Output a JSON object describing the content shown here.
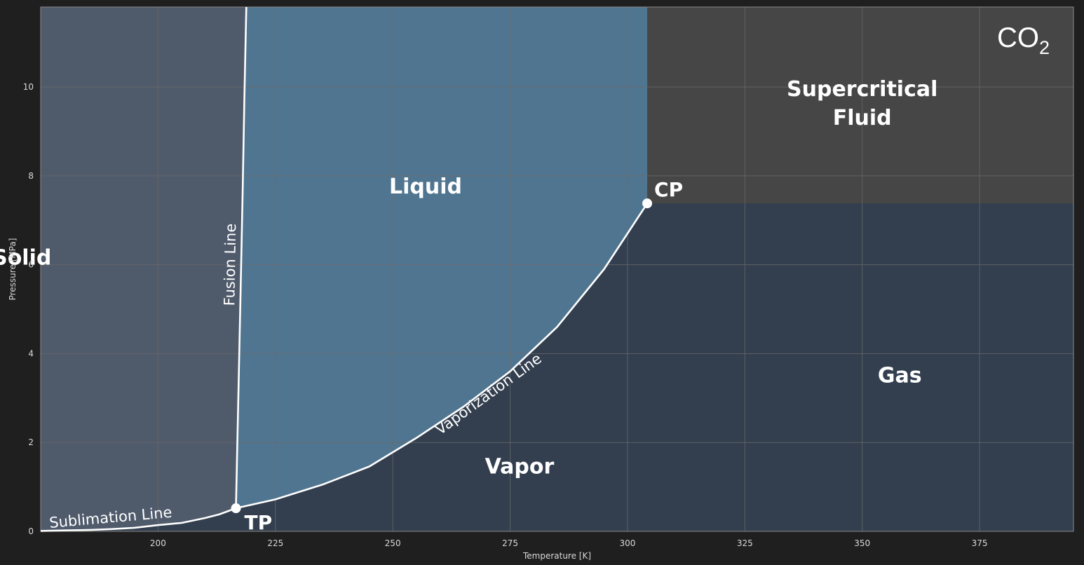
{
  "chart_data": {
    "type": "area",
    "title": "CO",
    "title_subscript": "2",
    "xlabel": "Temperature [K]",
    "ylabel": "Pressure [MPa]",
    "xlim": [
      175,
      395
    ],
    "ylim": [
      0,
      11.8
    ],
    "xticks": [
      200,
      225,
      250,
      275,
      300,
      325,
      350,
      375
    ],
    "yticks": [
      0,
      2,
      4,
      6,
      8,
      10
    ],
    "grid": true,
    "colors": {
      "background": "#1f1f1f",
      "solid_region": "#4f5a6b",
      "liquid_region": "#507590",
      "gas_vapor_region": "#333f4f",
      "supercritical_region": "#464646",
      "lines": "#ffffff",
      "grid": "#6b6b6b"
    },
    "regions": [
      {
        "name": "Solid",
        "label_at": [
          171,
          6.0
        ]
      },
      {
        "name": "Liquid",
        "label_at": [
          257,
          7.6
        ]
      },
      {
        "name": "Supercritical",
        "name_line2": "Fluid",
        "label_at": [
          350,
          9.8
        ]
      },
      {
        "name": "Vapor",
        "label_at": [
          277,
          1.3
        ]
      },
      {
        "name": "Gas",
        "label_at": [
          358,
          3.35
        ]
      }
    ],
    "points": [
      {
        "name": "TP",
        "T": 216.6,
        "P": 0.52
      },
      {
        "name": "CP",
        "T": 304.2,
        "P": 7.38
      }
    ],
    "curves": [
      {
        "name": "Sublimation Line",
        "T": [
          175,
          180,
          185,
          190,
          195,
          200,
          205,
          210,
          213,
          216.6
        ],
        "P": [
          0.01,
          0.02,
          0.03,
          0.05,
          0.08,
          0.14,
          0.19,
          0.3,
          0.38,
          0.52
        ]
      },
      {
        "name": "Fusion Line",
        "T": [
          216.6,
          217.0,
          217.5,
          218.0,
          218.4,
          218.8
        ],
        "P": [
          0.52,
          2.5,
          5.0,
          7.5,
          9.8,
          11.8
        ]
      },
      {
        "name": "Vaporization Line",
        "T": [
          216.6,
          225,
          235,
          245,
          255,
          265,
          275,
          285,
          295,
          304.2
        ],
        "P": [
          0.52,
          0.72,
          1.05,
          1.46,
          2.1,
          2.8,
          3.6,
          4.6,
          5.9,
          7.38
        ]
      }
    ]
  }
}
